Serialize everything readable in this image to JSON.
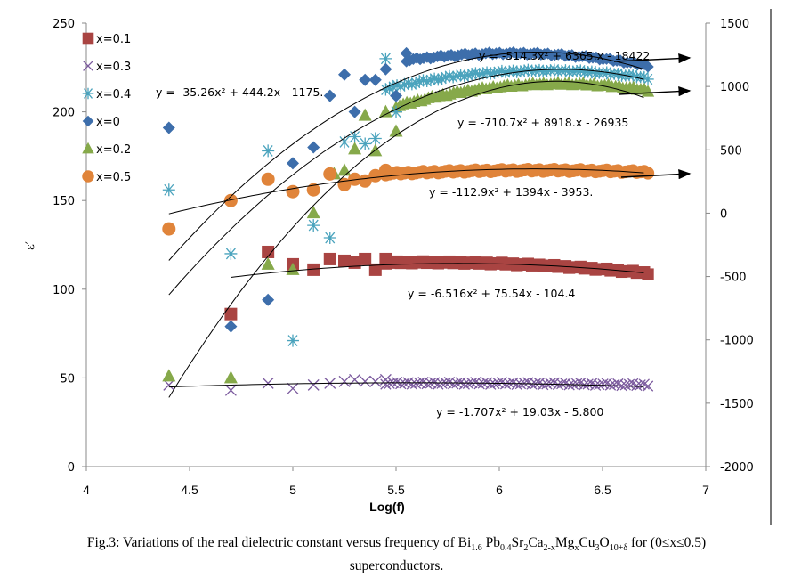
{
  "chart_data": {
    "type": "scatter",
    "xlabel": "Log(f)",
    "ylabel": "ε′",
    "xlim": [
      4,
      7
    ],
    "ylim_left": [
      0,
      250
    ],
    "ylim_right": [
      -2000,
      1500
    ],
    "xticks": [
      "4",
      "4.5",
      "5",
      "5.5",
      "6",
      "6.5",
      "7"
    ],
    "yticks_left": [
      "0",
      "50",
      "100",
      "150",
      "200",
      "250"
    ],
    "yticks_right": [
      "-2000",
      "-1500",
      "-1000",
      "-500",
      "0",
      "500",
      "1000",
      "1500"
    ],
    "grid": false,
    "legend_position": "top-left",
    "series": [
      {
        "name": "x=0.1",
        "marker": "square",
        "color": "#a94442",
        "sparse_points": [
          [
            4.7,
            86
          ],
          [
            4.88,
            121
          ],
          [
            5.0,
            114
          ],
          [
            5.1,
            111
          ],
          [
            5.18,
            117
          ],
          [
            5.25,
            116
          ],
          [
            5.3,
            115
          ],
          [
            5.35,
            117
          ],
          [
            5.4,
            111
          ],
          [
            5.45,
            117
          ]
        ],
        "trend": {
          "a": -6.516,
          "b": 75.54,
          "c": -104.4,
          "xrange": [
            4.7,
            6.7
          ]
        },
        "equation": "y = -6.516x² + 75.54x - 104.4"
      },
      {
        "name": "x=0.3",
        "marker": "x",
        "color": "#7b5a9e",
        "sparse_points": [
          [
            4.4,
            46
          ],
          [
            4.7,
            43
          ],
          [
            4.88,
            47
          ],
          [
            5.0,
            44
          ],
          [
            5.1,
            46
          ],
          [
            5.18,
            47
          ],
          [
            5.25,
            48
          ],
          [
            5.3,
            49
          ],
          [
            5.35,
            48
          ],
          [
            5.4,
            48
          ],
          [
            5.45,
            49
          ]
        ],
        "trend": {
          "a": -1.707,
          "b": 19.03,
          "c": -5.8,
          "xrange": [
            4.4,
            6.7
          ]
        },
        "equation": "y = -1.707x² + 19.03x - 5.800"
      },
      {
        "name": "x=0.4",
        "marker": "star",
        "color": "#4aa3bd",
        "sparse_points": [
          [
            4.4,
            156
          ],
          [
            4.7,
            120
          ],
          [
            4.88,
            178
          ],
          [
            5.0,
            71
          ],
          [
            5.1,
            136
          ],
          [
            5.18,
            129
          ],
          [
            5.25,
            183
          ],
          [
            5.3,
            186
          ],
          [
            5.35,
            182
          ],
          [
            5.4,
            185
          ],
          [
            5.45,
            230
          ],
          [
            5.5,
            200
          ]
        ],
        "trend": {
          "a": -35.26,
          "b": 444.2,
          "c": -1175,
          "xrange": [
            4.4,
            6.7
          ]
        },
        "equation": "y = -35.26x² + 444.2x - 1175."
      },
      {
        "name": "x=0",
        "marker": "diamond",
        "color": "#3d6eab",
        "sparse_points": [
          [
            4.4,
            191
          ],
          [
            4.7,
            79
          ],
          [
            4.88,
            94
          ],
          [
            5.0,
            171
          ],
          [
            5.1,
            180
          ],
          [
            5.18,
            209
          ],
          [
            5.25,
            221
          ],
          [
            5.3,
            200
          ],
          [
            5.35,
            218
          ],
          [
            5.4,
            218
          ],
          [
            5.45,
            224
          ],
          [
            5.5,
            209
          ],
          [
            5.55,
            233
          ]
        ],
        "trend": {
          "a": -514.3,
          "b": 6365,
          "c": -18422,
          "xrange": [
            4.4,
            6.7
          ],
          "axis": "right"
        },
        "equation": "y = -514.3x² + 6365.x - 18422"
      },
      {
        "name": "x=0.2",
        "marker": "triangle",
        "color": "#86a94a",
        "sparse_points": [
          [
            4.4,
            51
          ],
          [
            4.7,
            50
          ],
          [
            4.88,
            114
          ],
          [
            5.0,
            111
          ],
          [
            5.1,
            143
          ],
          [
            5.2,
            165
          ],
          [
            5.25,
            167
          ],
          [
            5.3,
            179
          ],
          [
            5.35,
            198
          ],
          [
            5.4,
            178
          ],
          [
            5.45,
            200
          ],
          [
            5.5,
            189
          ]
        ],
        "trend": {
          "a": -710.7,
          "b": 8918,
          "c": -26935,
          "xrange": [
            4.4,
            6.7
          ],
          "axis": "right"
        },
        "equation": "y = -710.7x² + 8918.x - 26935"
      },
      {
        "name": "x=0.5",
        "marker": "circle",
        "color": "#e0843a",
        "sparse_points": [
          [
            4.4,
            134
          ],
          [
            4.7,
            150
          ],
          [
            4.88,
            162
          ],
          [
            5.0,
            155
          ],
          [
            5.1,
            156
          ],
          [
            5.18,
            165
          ],
          [
            5.25,
            159
          ],
          [
            5.3,
            162
          ],
          [
            5.35,
            161
          ],
          [
            5.4,
            164
          ],
          [
            5.45,
            167
          ]
        ],
        "trend": {
          "a": -112.9,
          "b": 1394,
          "c": -3953,
          "xrange": [
            4.4,
            6.7
          ],
          "axis": "right"
        },
        "equation": "y = -112.9x² + 1394x - 3953."
      }
    ],
    "dense_bands": [
      {
        "series": "x=0",
        "x": [
          5.55,
          6.72
        ],
        "y_center": [
          229,
          226
        ],
        "peak_x": 6.1,
        "peak_y": 233
      },
      {
        "series": "x=0.4",
        "x": [
          5.45,
          6.72
        ],
        "y_center": [
          213,
          219
        ],
        "peak_x": 6.1,
        "peak_y": 223
      },
      {
        "series": "x=0.2",
        "x": [
          5.5,
          6.72
        ],
        "y_center": [
          203,
          212
        ],
        "peak_x": 6.1,
        "peak_y": 215
      },
      {
        "series": "x=0.5",
        "x": [
          5.45,
          6.72
        ],
        "y_center": [
          165,
          166
        ],
        "peak_x": 6.1,
        "peak_y": 167
      },
      {
        "series": "x=0.1",
        "x": [
          5.45,
          6.72
        ],
        "y_center": [
          115,
          109
        ],
        "peak_x": 5.8,
        "peak_y": 115
      },
      {
        "series": "x=0.3",
        "x": [
          5.45,
          6.72
        ],
        "y_center": [
          47,
          46
        ],
        "peak_x": 5.8,
        "peak_y": 47
      }
    ],
    "arrows": [
      {
        "target": "x=0 trend",
        "axis": "right"
      },
      {
        "target": "x=0.2 trend",
        "axis": "right"
      },
      {
        "target": "x=0.5 trend",
        "axis": "right"
      }
    ]
  },
  "caption": {
    "line1_prefix": "Fig.3: Variations of the real dielectric constant versus frequency of Bi",
    "sub_bi": "1.6",
    "pb": " Pb",
    "sub_pb": "0.4",
    "sr": "Sr",
    "sub_sr": "2",
    "ca": "Ca",
    "sub_ca": "2-x",
    "mg": "Mg",
    "sub_mg": "x",
    "cu": "Cu",
    "sub_cu": "3",
    "o": "O",
    "sub_o": "10+δ",
    "suffix": " for (0≤x≤0.5)",
    "line2": "superconductors."
  }
}
